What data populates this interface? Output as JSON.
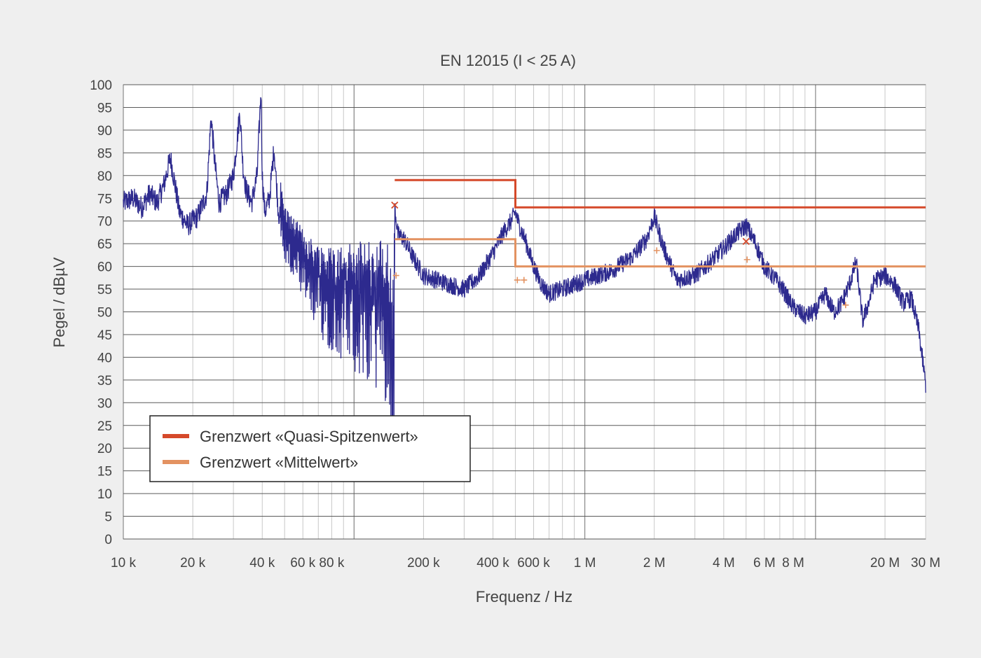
{
  "chart_data": {
    "type": "line",
    "title": "EN 12015 (I < 25 A)",
    "xlabel": "Frequenz / Hz",
    "ylabel": "Pegel / dBµV",
    "xscale": "log",
    "xlim": [
      10000,
      30000000
    ],
    "ylim": [
      0,
      100
    ],
    "grid": true,
    "legend_position": "bottom-left",
    "x_tick_values": [
      10000,
      20000,
      40000,
      60000,
      80000,
      200000,
      400000,
      600000,
      1000000,
      2000000,
      4000000,
      6000000,
      8000000,
      20000000,
      30000000
    ],
    "x_tick_labels": [
      "10 k",
      "20 k",
      "40 k",
      "60 k",
      "80 k",
      "200 k",
      "400 k",
      "600 k",
      "1 M",
      "2 M",
      "4 M",
      "6 M",
      "8 M",
      "20 M",
      "30 M"
    ],
    "y_tick_values": [
      0,
      5,
      10,
      15,
      20,
      25,
      30,
      35,
      40,
      45,
      50,
      55,
      60,
      65,
      70,
      75,
      80,
      85,
      90,
      95,
      100
    ],
    "y_tick_labels": [
      "0",
      "5",
      "10",
      "15",
      "20",
      "25",
      "30",
      "35",
      "40",
      "45",
      "50",
      "55",
      "60",
      "65",
      "70",
      "75",
      "80",
      "85",
      "90",
      "95",
      "100"
    ],
    "series": [
      {
        "name": "Grenzwert «Quasi-Spitzenwert»",
        "color": "#d5492a",
        "x": [
          150000,
          500000,
          500000,
          30000000
        ],
        "y": [
          79,
          79,
          73,
          73
        ]
      },
      {
        "name": "Grenzwert «Mittelwert»",
        "color": "#e39261",
        "x": [
          150000,
          500000,
          500000,
          30000000
        ],
        "y": [
          66,
          66,
          60,
          60
        ]
      },
      {
        "color": "#2d2a8e",
        "x": [
          10000,
          11000,
          12000,
          13000,
          14000,
          15000,
          16000,
          17500,
          19000,
          21000,
          23000,
          24000,
          25000,
          26000,
          28000,
          30000,
          32000,
          33000,
          34000,
          36000,
          38000,
          39500,
          40000,
          41000,
          43000,
          45000,
          47000,
          48000,
          50000,
          55000,
          60000,
          65000,
          70000,
          80000,
          90000,
          100000,
          110000,
          120000,
          130000,
          140000,
          149000,
          150000,
          155000,
          165000,
          180000,
          200000,
          230000,
          260000,
          300000,
          350000,
          400000,
          450000,
          480000,
          500000,
          520000,
          550000,
          600000,
          650000,
          700000,
          800000,
          1000000,
          1300000,
          1600000,
          1850000,
          2000000,
          2200000,
          2500000,
          3000000,
          3500000,
          4000000,
          4500000,
          5000000,
          5500000,
          6000000,
          7000000,
          8000000,
          9000000,
          10000000,
          11000000,
          12000000,
          13000000,
          14000000,
          15000000,
          16000000,
          17000000,
          18000000,
          20000000,
          22000000,
          24000000,
          26000000,
          28000000,
          30000000
        ],
        "y": [
          74,
          75,
          73,
          76,
          74,
          78,
          84,
          72,
          69,
          71,
          76,
          93,
          82,
          74,
          76,
          80,
          94,
          82,
          77,
          74,
          80,
          99,
          80,
          72,
          75,
          86,
          72,
          70,
          64,
          60,
          57,
          54,
          52,
          50,
          49,
          48,
          47,
          47,
          46,
          45,
          34,
          73,
          67,
          66,
          62,
          58,
          57,
          56,
          55,
          58,
          63,
          68,
          70,
          72,
          69,
          66,
          60,
          56,
          54,
          55,
          57,
          59,
          62,
          66,
          71,
          64,
          57,
          58,
          61,
          64,
          67,
          69,
          65,
          60,
          56,
          51,
          49,
          50,
          54,
          50,
          52,
          56,
          61,
          48,
          52,
          57,
          58,
          56,
          52,
          53,
          46,
          34
        ]
      },
      {
        "marker": "x",
        "color": "#d5492a",
        "x": [
          150000,
          5000000
        ],
        "y": [
          73.5,
          65.5
        ]
      },
      {
        "marker": "+",
        "color": "#e39261",
        "x": [
          152000,
          510000,
          545000,
          2050000,
          5050000,
          13500000
        ],
        "y": [
          58,
          57,
          57,
          63.5,
          61.5,
          51.5
        ]
      }
    ]
  }
}
